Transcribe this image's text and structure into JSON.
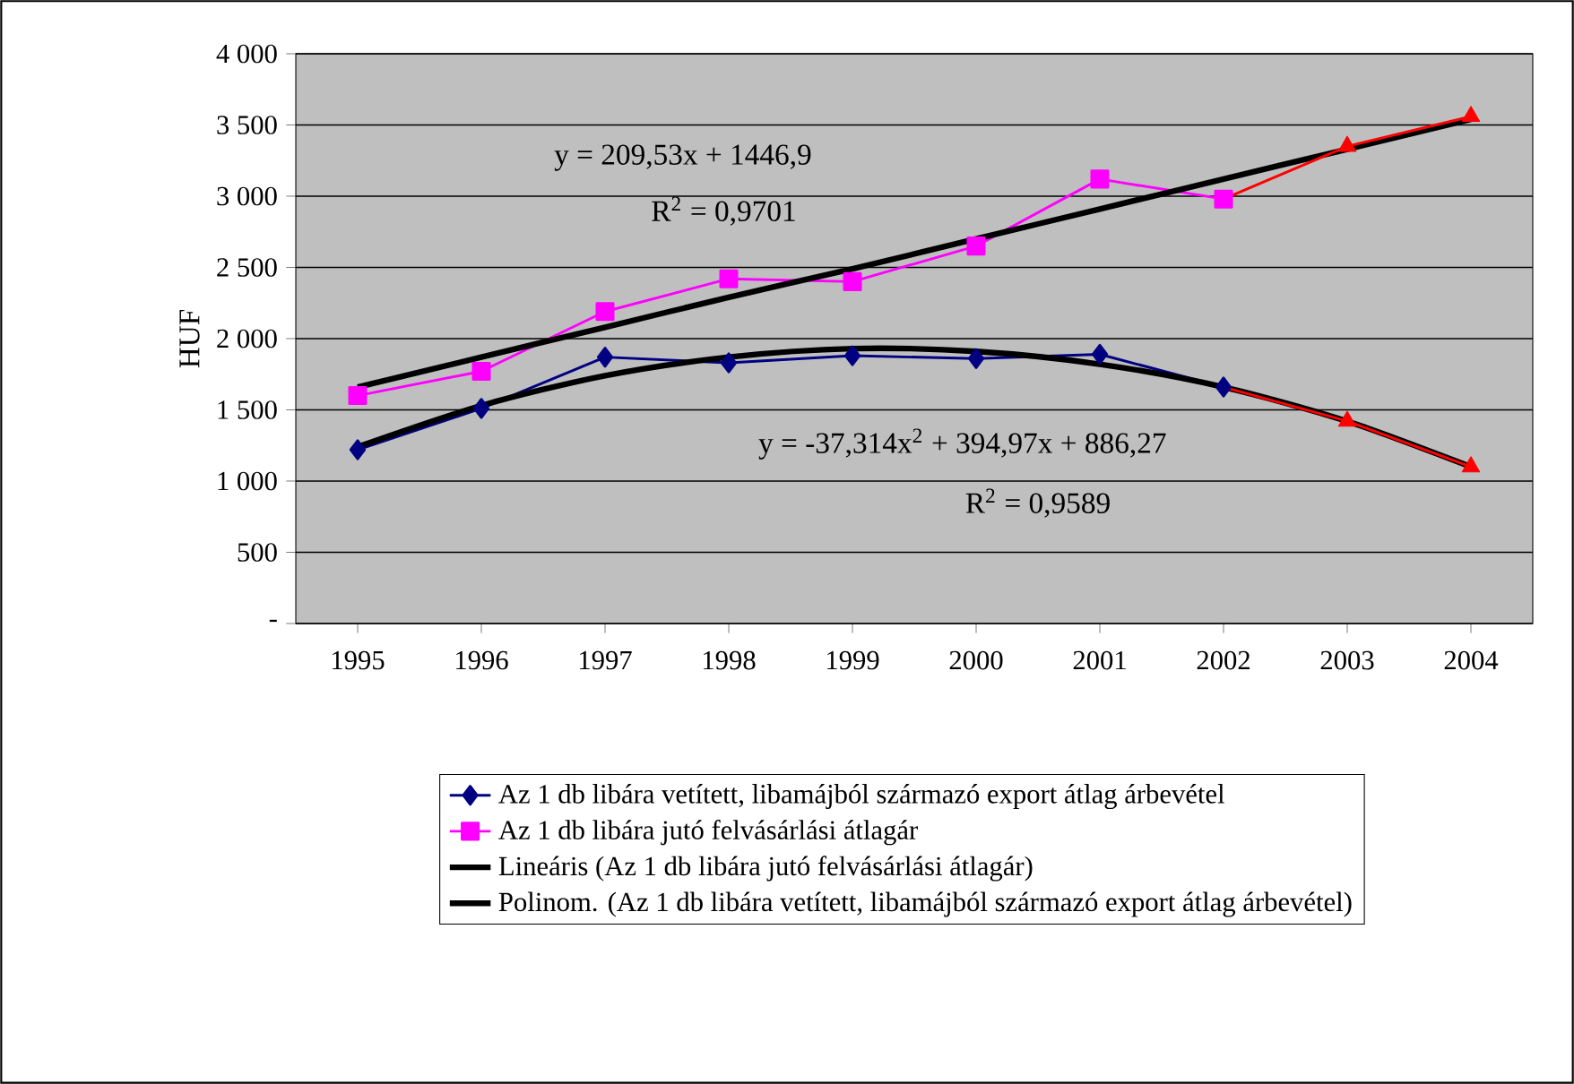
{
  "chart_data": {
    "type": "line",
    "ylabel": "HUF",
    "categories": [
      "1995",
      "1996",
      "1997",
      "1998",
      "1999",
      "2000",
      "2001",
      "2002",
      "2003",
      "2004"
    ],
    "ylim": [
      0,
      4000
    ],
    "yticks": [
      {
        "value": 0,
        "label": "-"
      },
      {
        "value": 500,
        "label": "500"
      },
      {
        "value": 1000,
        "label": "1 000"
      },
      {
        "value": 1500,
        "label": "1 500"
      },
      {
        "value": 2000,
        "label": "2 000"
      },
      {
        "value": 2500,
        "label": "2 500"
      },
      {
        "value": 3000,
        "label": "3 000"
      },
      {
        "value": 3500,
        "label": "3 500"
      },
      {
        "value": 4000,
        "label": "4 000"
      }
    ],
    "grid": "y",
    "legend": "bottom",
    "line_style": "solid",
    "annotations": [
      "y = 209,53x + 1446,9",
      "R$^{2}$ = 0,9701",
      "y = -37,314x$^{2}$ + 394,97x + 886,27",
      "R$^{2}$ = 0,9589"
    ],
    "series": [
      {
        "name": "Az 1 db libára vetített, libamájból származó export átlag árbevétel",
        "color": "#000080",
        "marker": "diamond",
        "values": [
          1220,
          1510,
          1870,
          1830,
          1880,
          1860,
          1890,
          1660,
          null,
          null
        ]
      },
      {
        "name": "Az 1 db libára jutó felvásárlási átlagár",
        "color": "#ff00ff",
        "marker": "square",
        "values": [
          1600,
          1770,
          2190,
          2420,
          2400,
          2650,
          3120,
          2980,
          null,
          null
        ]
      },
      {
        "name": "Lineáris (Az 1 db libára jutó felvásárlási átlagár)",
        "color": "#000000",
        "marker": "none",
        "values": [
          1660,
          1870,
          2080,
          2290,
          2490,
          2700,
          2910,
          3120,
          3330,
          3540
        ]
      },
      {
        "name": "Polinom. (Az 1 db libára vetített, libamájból származó export átlag árbevétel)",
        "color": "#000000",
        "marker": "none",
        "values": [
          1240,
          1530,
          1740,
          1870,
          1930,
          1910,
          1820,
          1660,
          1420,
          1100
        ]
      },
      {
        "type": "line",
        "color": "#ff0000",
        "marker": "none",
        "values": [
          null,
          null,
          null,
          null,
          null,
          null,
          null,
          2980,
          3350,
          3560
        ]
      },
      {
        "type": "line",
        "color": "#ff0000",
        "marker": "none",
        "values": [
          null,
          null,
          null,
          null,
          null,
          null,
          null,
          1660,
          1420,
          1100
        ]
      },
      {
        "type": "scatter",
        "color": "#ff0000",
        "marker": "triangle",
        "values": [
          null,
          null,
          null,
          null,
          null,
          null,
          null,
          null,
          3350,
          3560
        ]
      },
      {
        "type": "scatter",
        "color": "#ff0000",
        "marker": "triangle",
        "values": [
          null,
          null,
          null,
          null,
          null,
          null,
          null,
          null,
          1420,
          1100
        ]
      }
    ]
  }
}
